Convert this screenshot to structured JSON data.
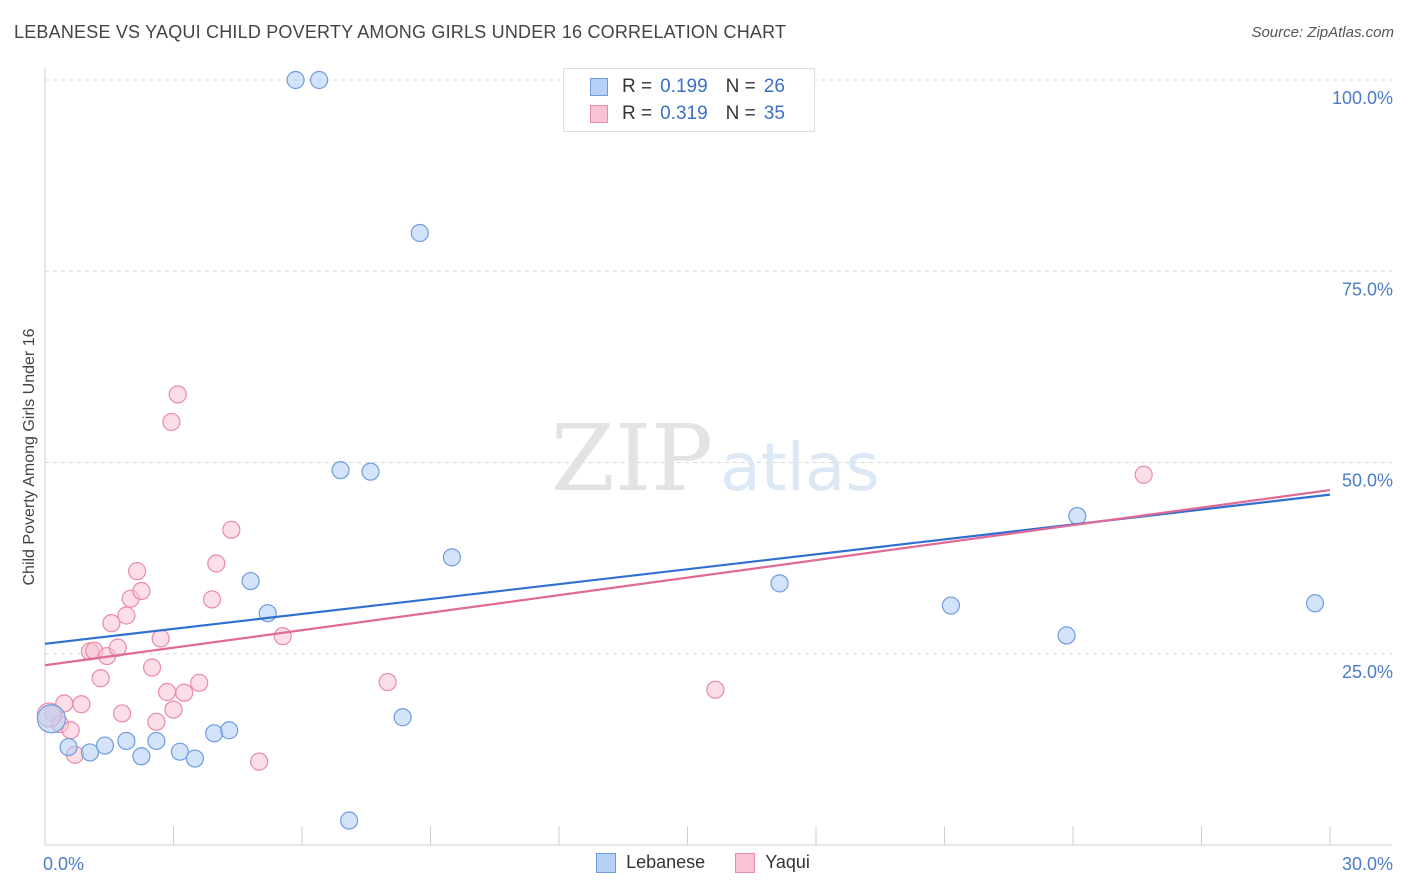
{
  "header": {
    "title": "LEBANESE VS YAQUI CHILD POVERTY AMONG GIRLS UNDER 16 CORRELATION CHART",
    "source": "Source: ZipAtlas.com"
  },
  "watermark": {
    "zip": "ZIP",
    "atlas": "atlas"
  },
  "legend": {
    "lebanese": {
      "r_label": "R =",
      "r_value": "0.199",
      "n_label": "N =",
      "n_value": "26"
    },
    "yaqui": {
      "r_label": "R =",
      "r_value": "0.319",
      "n_label": "N =",
      "n_value": "35"
    }
  },
  "colors": {
    "lebanese_fill": "#b6d1f5",
    "lebanese_stroke": "#6f9be0",
    "lebanese_line": "#2f6fcf",
    "yaqui_fill": "#f8c3d3",
    "yaqui_stroke": "#e98aa8",
    "yaqui_line": "#e06a97",
    "grid": "#d8d8d8",
    "tick": "#4a7cc7"
  },
  "chart_data": {
    "type": "scatter",
    "title": "LEBANESE VS YAQUI CHILD POVERTY AMONG GIRLS UNDER 16 CORRELATION CHART",
    "xlabel": "",
    "ylabel": "Child Poverty Among Girls Under 16",
    "xlim": [
      0,
      30
    ],
    "ylim": [
      0,
      100
    ],
    "x_tick_labels": [
      "0.0%",
      "30.0%"
    ],
    "y_ticks": [
      25,
      50,
      75,
      100
    ],
    "y_tick_labels": [
      "25.0%",
      "50.0%",
      "75.0%",
      "100.0%"
    ],
    "grid": true,
    "legend_position": "top-center",
    "series": [
      {
        "name": "Lebanese",
        "trend": {
          "start": [
            0,
            26.3
          ],
          "end": [
            30,
            45.8
          ]
        },
        "points": [
          [
            0.15,
            16.5
          ],
          [
            0.55,
            12.8
          ],
          [
            1.05,
            12.1
          ],
          [
            1.4,
            13.0
          ],
          [
            1.9,
            13.6
          ],
          [
            2.25,
            11.6
          ],
          [
            2.6,
            13.6
          ],
          [
            3.15,
            12.2
          ],
          [
            3.5,
            11.3
          ],
          [
            3.95,
            14.6
          ],
          [
            4.3,
            15.0
          ],
          [
            4.8,
            34.5
          ],
          [
            5.2,
            30.3
          ],
          [
            5.85,
            100.0
          ],
          [
            6.4,
            100.0
          ],
          [
            6.9,
            49.0
          ],
          [
            7.1,
            3.2
          ],
          [
            7.6,
            48.8
          ],
          [
            8.35,
            16.7
          ],
          [
            8.75,
            80.0
          ],
          [
            9.5,
            37.6
          ],
          [
            17.15,
            34.2
          ],
          [
            21.15,
            31.3
          ],
          [
            23.85,
            27.4
          ],
          [
            24.1,
            43.0
          ],
          [
            29.65,
            31.6
          ]
        ]
      },
      {
        "name": "Yaqui",
        "trend": {
          "start": [
            0,
            23.5
          ],
          "end": [
            30,
            46.4
          ]
        },
        "points": [
          [
            0.2,
            17.2
          ],
          [
            0.35,
            15.8
          ],
          [
            0.45,
            18.5
          ],
          [
            0.6,
            15.0
          ],
          [
            0.7,
            11.8
          ],
          [
            0.85,
            18.4
          ],
          [
            1.05,
            25.3
          ],
          [
            1.15,
            25.4
          ],
          [
            1.3,
            21.8
          ],
          [
            1.45,
            24.7
          ],
          [
            1.55,
            29.0
          ],
          [
            1.7,
            25.8
          ],
          [
            1.8,
            17.2
          ],
          [
            1.9,
            30.0
          ],
          [
            2.0,
            32.2
          ],
          [
            2.15,
            35.8
          ],
          [
            2.25,
            33.2
          ],
          [
            2.5,
            23.2
          ],
          [
            2.6,
            16.1
          ],
          [
            2.7,
            27.0
          ],
          [
            2.85,
            20.0
          ],
          [
            2.95,
            55.3
          ],
          [
            3.0,
            17.7
          ],
          [
            3.1,
            58.9
          ],
          [
            3.25,
            19.9
          ],
          [
            3.6,
            21.2
          ],
          [
            3.9,
            32.1
          ],
          [
            4.0,
            36.8
          ],
          [
            4.35,
            41.2
          ],
          [
            5.0,
            10.9
          ],
          [
            5.55,
            27.3
          ],
          [
            8.0,
            21.3
          ],
          [
            15.65,
            20.3
          ],
          [
            25.65,
            48.4
          ],
          [
            0.1,
            17.0
          ]
        ]
      }
    ]
  },
  "bottom_legend": {
    "lebanese": "Lebanese",
    "yaqui": "Yaqui"
  }
}
